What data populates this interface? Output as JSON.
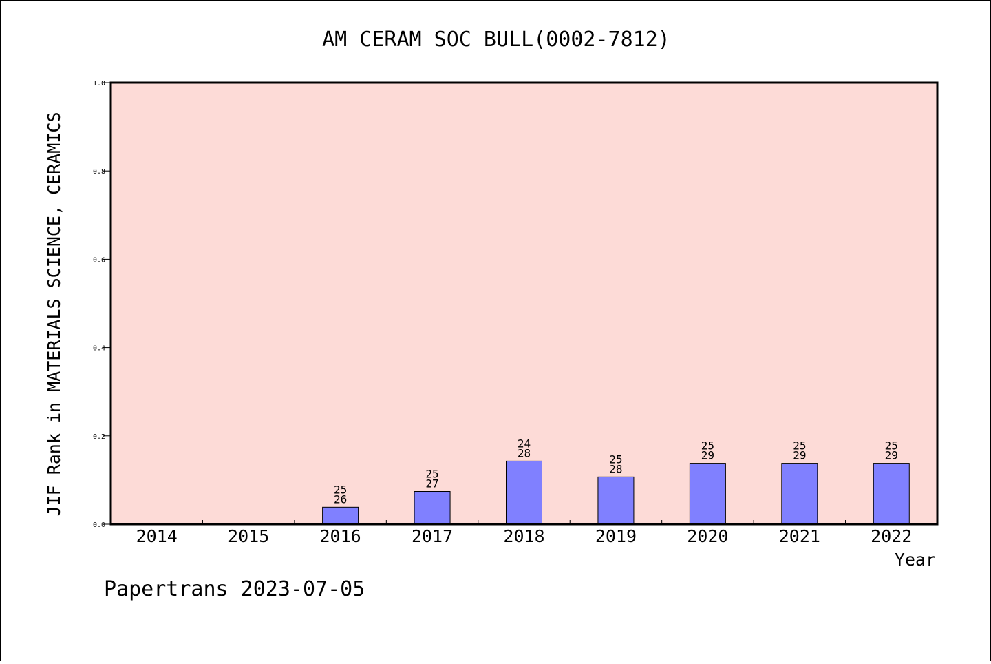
{
  "chart_data": {
    "type": "bar",
    "title": "AM CERAM SOC BULL(0002-7812)",
    "xlabel": "Year",
    "ylabel": "JIF Rank in MATERIALS SCIENCE, CERAMICS",
    "ylim": [
      0,
      1.0
    ],
    "yticks": [
      "0.0",
      "0.2",
      "0.4",
      "0.6",
      "0.8",
      "1.0"
    ],
    "grid": false,
    "colors": {
      "plot_background": "#fddbd7",
      "bar": "#8080ff",
      "bar_edge": "#000000"
    },
    "categories": [
      "2014",
      "2015",
      "2016",
      "2017",
      "2018",
      "2019",
      "2020",
      "2021",
      "2022"
    ],
    "bars": [
      {
        "year": "2014",
        "value": null,
        "rank": "",
        "total": ""
      },
      {
        "year": "2015",
        "value": null,
        "rank": "",
        "total": ""
      },
      {
        "year": "2016",
        "value": 0.0385,
        "rank": "25",
        "total": "26"
      },
      {
        "year": "2017",
        "value": 0.0741,
        "rank": "25",
        "total": "27"
      },
      {
        "year": "2018",
        "value": 0.1429,
        "rank": "24",
        "total": "28"
      },
      {
        "year": "2019",
        "value": 0.1071,
        "rank": "25",
        "total": "28"
      },
      {
        "year": "2020",
        "value": 0.1379,
        "rank": "25",
        "total": "29"
      },
      {
        "year": "2021",
        "value": 0.1379,
        "rank": "25",
        "total": "29"
      },
      {
        "year": "2022",
        "value": 0.1379,
        "rank": "25",
        "total": "29"
      }
    ]
  },
  "footer": "Papertrans 2023-07-05"
}
